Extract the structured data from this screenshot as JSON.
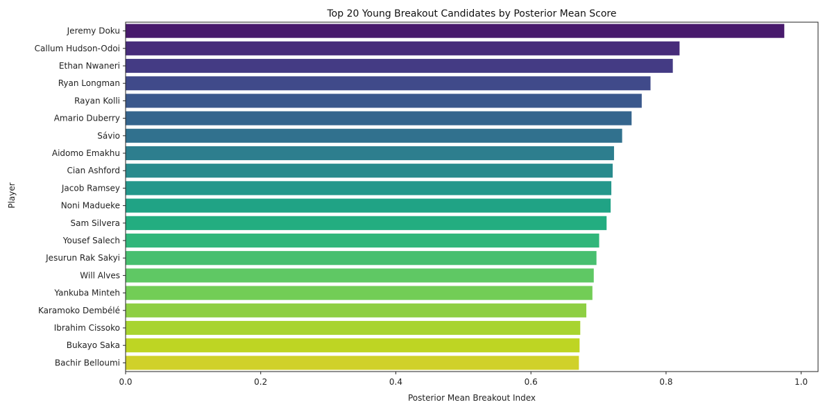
{
  "chart_data": {
    "type": "bar",
    "orientation": "horizontal",
    "title": "Top 20 Young Breakout Candidates by Posterior Mean Score",
    "xlabel": "Posterior Mean Breakout Index",
    "ylabel": "Player",
    "xlim": [
      0,
      1.025
    ],
    "x_ticks": [
      "0.0",
      "0.2",
      "0.4",
      "0.6",
      "0.8",
      "1.0"
    ],
    "grid": false,
    "categories": [
      "Jeremy Doku",
      "Callum Hudson-Odoi",
      "Ethan Nwaneri",
      "Ryan Longman",
      "Rayan Kolli",
      "Amario Duberry",
      "Sávio",
      "Aidomo Emakhu",
      "Cian Ashford",
      "Jacob Ramsey",
      "Noni Madueke",
      "Sam Silvera",
      "Yousef Salech",
      "Jesurun Rak Sakyi",
      "Will Alves",
      "Yankuba Minteh",
      "Karamoko Dembélé",
      "Ibrahim Cissoko",
      "Bukayo Saka",
      "Bachir Belloumi"
    ],
    "values": [
      0.975,
      0.82,
      0.81,
      0.777,
      0.764,
      0.749,
      0.735,
      0.723,
      0.721,
      0.719,
      0.718,
      0.712,
      0.701,
      0.697,
      0.693,
      0.691,
      0.682,
      0.673,
      0.672,
      0.671
    ],
    "colors": [
      "#481a6c",
      "#472c7a",
      "#443b84",
      "#404a8a",
      "#3b588c",
      "#35658d",
      "#31718e",
      "#2d7e8e",
      "#298b8d",
      "#25978b",
      "#20a385",
      "#23ad80",
      "#30b67a",
      "#48bf6f",
      "#5fc864",
      "#72cd56",
      "#8ecf43",
      "#a8d430",
      "#bed523",
      "#d0d12a"
    ]
  }
}
